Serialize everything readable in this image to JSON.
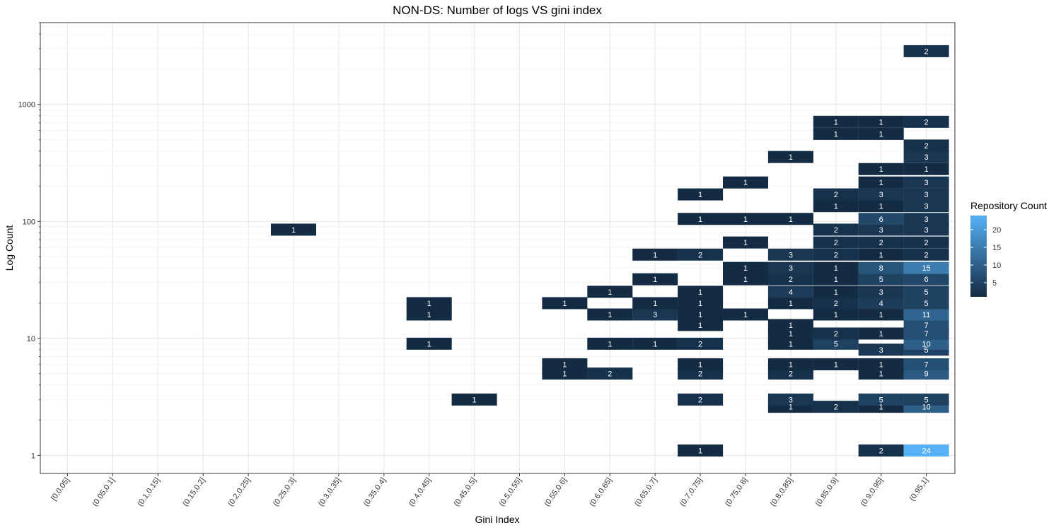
{
  "chart_data": {
    "type": "heatmap",
    "title": "NON-DS: Number of logs VS gini index",
    "xlabel": "Gini Index",
    "ylabel": "Log Count",
    "y_scale": "log10",
    "ylim": [
      0.7,
      5000
    ],
    "y_tick_labels": [
      "1",
      "10",
      "100",
      "1000"
    ],
    "grid": true,
    "categories": [
      "[0,0.05]",
      "(0.05,0.1]",
      "(0.1,0.15]",
      "(0.15,0.2]",
      "(0.2,0.25]",
      "(0.25,0.3]",
      "(0.3,0.35]",
      "(0.35,0.4]",
      "(0.4,0.45]",
      "(0.45,0.5]",
      "(0.5,0.55]",
      "(0.55,0.6]",
      "(0.6,0.65]",
      "(0.65,0.7]",
      "(0.7,0.75]",
      "(0.75,0.8]",
      "(0.8,0.85]",
      "(0.85,0.9]",
      "(0.9,0.95]",
      "(0.95,1]"
    ],
    "legend": {
      "title": "Repository Count",
      "placement": "right",
      "ticks": [
        5,
        10,
        15,
        20
      ],
      "range": [
        1,
        24
      ],
      "low_color": "#132b43",
      "high_color": "#56b1f7"
    },
    "cells": [
      {
        "x": "(0.25,0.3]",
        "y": 85,
        "count": 1
      },
      {
        "x": "(0.4,0.45]",
        "y": 9,
        "count": 1
      },
      {
        "x": "(0.4,0.45]",
        "y": 16,
        "count": 1
      },
      {
        "x": "(0.4,0.45]",
        "y": 20,
        "count": 1
      },
      {
        "x": "(0.45,0.5]",
        "y": 3,
        "count": 1
      },
      {
        "x": "(0.55,0.6]",
        "y": 5,
        "count": 1
      },
      {
        "x": "(0.55,0.6]",
        "y": 6,
        "count": 1
      },
      {
        "x": "(0.55,0.6]",
        "y": 20,
        "count": 1
      },
      {
        "x": "(0.6,0.65]",
        "y": 5,
        "count": 2
      },
      {
        "x": "(0.6,0.65]",
        "y": 9,
        "count": 1
      },
      {
        "x": "(0.6,0.65]",
        "y": 16,
        "count": 1
      },
      {
        "x": "(0.6,0.65]",
        "y": 25,
        "count": 1
      },
      {
        "x": "(0.65,0.7]",
        "y": 9,
        "count": 1
      },
      {
        "x": "(0.65,0.7]",
        "y": 16,
        "count": 3
      },
      {
        "x": "(0.65,0.7]",
        "y": 20,
        "count": 1
      },
      {
        "x": "(0.65,0.7]",
        "y": 32,
        "count": 1
      },
      {
        "x": "(0.65,0.7]",
        "y": 52,
        "count": 1
      },
      {
        "x": "(0.7,0.75]",
        "y": 1.1,
        "count": 1
      },
      {
        "x": "(0.7,0.75]",
        "y": 3,
        "count": 2
      },
      {
        "x": "(0.7,0.75]",
        "y": 5,
        "count": 2
      },
      {
        "x": "(0.7,0.75]",
        "y": 6,
        "count": 1
      },
      {
        "x": "(0.7,0.75]",
        "y": 9,
        "count": 2
      },
      {
        "x": "(0.7,0.75]",
        "y": 13,
        "count": 1
      },
      {
        "x": "(0.7,0.75]",
        "y": 16,
        "count": 1
      },
      {
        "x": "(0.7,0.75]",
        "y": 20,
        "count": 1
      },
      {
        "x": "(0.7,0.75]",
        "y": 25,
        "count": 1
      },
      {
        "x": "(0.7,0.75]",
        "y": 52,
        "count": 2
      },
      {
        "x": "(0.7,0.75]",
        "y": 105,
        "count": 1
      },
      {
        "x": "(0.7,0.75]",
        "y": 170,
        "count": 1
      },
      {
        "x": "(0.75,0.8]",
        "y": 16,
        "count": 1
      },
      {
        "x": "(0.75,0.8]",
        "y": 32,
        "count": 1
      },
      {
        "x": "(0.75,0.8]",
        "y": 40,
        "count": 1
      },
      {
        "x": "(0.75,0.8]",
        "y": 66,
        "count": 1
      },
      {
        "x": "(0.75,0.8]",
        "y": 105,
        "count": 1
      },
      {
        "x": "(0.75,0.8]",
        "y": 215,
        "count": 1
      },
      {
        "x": "(0.8,0.85]",
        "y": 2.6,
        "count": 1
      },
      {
        "x": "(0.8,0.85]",
        "y": 3,
        "count": 3
      },
      {
        "x": "(0.8,0.85]",
        "y": 5,
        "count": 2
      },
      {
        "x": "(0.8,0.85]",
        "y": 6,
        "count": 1
      },
      {
        "x": "(0.8,0.85]",
        "y": 9,
        "count": 1
      },
      {
        "x": "(0.8,0.85]",
        "y": 11,
        "count": 1
      },
      {
        "x": "(0.8,0.85]",
        "y": 13,
        "count": 1
      },
      {
        "x": "(0.8,0.85]",
        "y": 20,
        "count": 1
      },
      {
        "x": "(0.8,0.85]",
        "y": 25,
        "count": 4
      },
      {
        "x": "(0.8,0.85]",
        "y": 32,
        "count": 2
      },
      {
        "x": "(0.8,0.85]",
        "y": 40,
        "count": 3
      },
      {
        "x": "(0.8,0.85]",
        "y": 52,
        "count": 3
      },
      {
        "x": "(0.8,0.85]",
        "y": 105,
        "count": 1
      },
      {
        "x": "(0.8,0.85]",
        "y": 355,
        "count": 1
      },
      {
        "x": "(0.85,0.9]",
        "y": 2.6,
        "count": 2
      },
      {
        "x": "(0.85,0.9]",
        "y": 6,
        "count": 1
      },
      {
        "x": "(0.85,0.9]",
        "y": 9,
        "count": 5
      },
      {
        "x": "(0.85,0.9]",
        "y": 11,
        "count": 2
      },
      {
        "x": "(0.85,0.9]",
        "y": 16,
        "count": 1
      },
      {
        "x": "(0.85,0.9]",
        "y": 20,
        "count": 2
      },
      {
        "x": "(0.85,0.9]",
        "y": 25,
        "count": 1
      },
      {
        "x": "(0.85,0.9]",
        "y": 32,
        "count": 1
      },
      {
        "x": "(0.85,0.9]",
        "y": 40,
        "count": 1
      },
      {
        "x": "(0.85,0.9]",
        "y": 52,
        "count": 2
      },
      {
        "x": "(0.85,0.9]",
        "y": 66,
        "count": 2
      },
      {
        "x": "(0.85,0.9]",
        "y": 85,
        "count": 2
      },
      {
        "x": "(0.85,0.9]",
        "y": 135,
        "count": 1
      },
      {
        "x": "(0.85,0.9]",
        "y": 170,
        "count": 2
      },
      {
        "x": "(0.85,0.9]",
        "y": 560,
        "count": 1
      },
      {
        "x": "(0.85,0.9]",
        "y": 710,
        "count": 1
      },
      {
        "x": "(0.9,0.95]",
        "y": 1.1,
        "count": 2
      },
      {
        "x": "(0.9,0.95]",
        "y": 2.6,
        "count": 1
      },
      {
        "x": "(0.9,0.95]",
        "y": 3,
        "count": 5
      },
      {
        "x": "(0.9,0.95]",
        "y": 5,
        "count": 1
      },
      {
        "x": "(0.9,0.95]",
        "y": 6,
        "count": 1
      },
      {
        "x": "(0.9,0.95]",
        "y": 8,
        "count": 3
      },
      {
        "x": "(0.9,0.95]",
        "y": 11,
        "count": 1
      },
      {
        "x": "(0.9,0.95]",
        "y": 16,
        "count": 1
      },
      {
        "x": "(0.9,0.95]",
        "y": 20,
        "count": 4
      },
      {
        "x": "(0.9,0.95]",
        "y": 25,
        "count": 3
      },
      {
        "x": "(0.9,0.95]",
        "y": 32,
        "count": 5
      },
      {
        "x": "(0.9,0.95]",
        "y": 40,
        "count": 8
      },
      {
        "x": "(0.9,0.95]",
        "y": 52,
        "count": 1
      },
      {
        "x": "(0.9,0.95]",
        "y": 66,
        "count": 2
      },
      {
        "x": "(0.9,0.95]",
        "y": 85,
        "count": 3
      },
      {
        "x": "(0.9,0.95]",
        "y": 105,
        "count": 6
      },
      {
        "x": "(0.9,0.95]",
        "y": 135,
        "count": 1
      },
      {
        "x": "(0.9,0.95]",
        "y": 170,
        "count": 3
      },
      {
        "x": "(0.9,0.95]",
        "y": 215,
        "count": 1
      },
      {
        "x": "(0.9,0.95]",
        "y": 280,
        "count": 1
      },
      {
        "x": "(0.9,0.95]",
        "y": 560,
        "count": 1
      },
      {
        "x": "(0.9,0.95]",
        "y": 710,
        "count": 1
      },
      {
        "x": "(0.95,1]",
        "y": 1.1,
        "count": 24
      },
      {
        "x": "(0.95,1]",
        "y": 2.6,
        "count": 10
      },
      {
        "x": "(0.95,1]",
        "y": 3,
        "count": 5
      },
      {
        "x": "(0.95,1]",
        "y": 5,
        "count": 9
      },
      {
        "x": "(0.95,1]",
        "y": 6,
        "count": 7
      },
      {
        "x": "(0.95,1]",
        "y": 8,
        "count": 5
      },
      {
        "x": "(0.95,1]",
        "y": 9,
        "count": 10
      },
      {
        "x": "(0.95,1]",
        "y": 11,
        "count": 7
      },
      {
        "x": "(0.95,1]",
        "y": 13,
        "count": 7
      },
      {
        "x": "(0.95,1]",
        "y": 16,
        "count": 11
      },
      {
        "x": "(0.95,1]",
        "y": 20,
        "count": 5
      },
      {
        "x": "(0.95,1]",
        "y": 25,
        "count": 5
      },
      {
        "x": "(0.95,1]",
        "y": 32,
        "count": 6
      },
      {
        "x": "(0.95,1]",
        "y": 40,
        "count": 15
      },
      {
        "x": "(0.95,1]",
        "y": 52,
        "count": 2
      },
      {
        "x": "(0.95,1]",
        "y": 66,
        "count": 2
      },
      {
        "x": "(0.95,1]",
        "y": 85,
        "count": 3
      },
      {
        "x": "(0.95,1]",
        "y": 105,
        "count": 3
      },
      {
        "x": "(0.95,1]",
        "y": 135,
        "count": 3
      },
      {
        "x": "(0.95,1]",
        "y": 170,
        "count": 3
      },
      {
        "x": "(0.95,1]",
        "y": 215,
        "count": 3
      },
      {
        "x": "(0.95,1]",
        "y": 280,
        "count": 1
      },
      {
        "x": "(0.95,1]",
        "y": 355,
        "count": 3
      },
      {
        "x": "(0.95,1]",
        "y": 445,
        "count": 2
      },
      {
        "x": "(0.95,1]",
        "y": 710,
        "count": 2
      },
      {
        "x": "(0.95,1]",
        "y": 2850,
        "count": 2
      }
    ]
  }
}
